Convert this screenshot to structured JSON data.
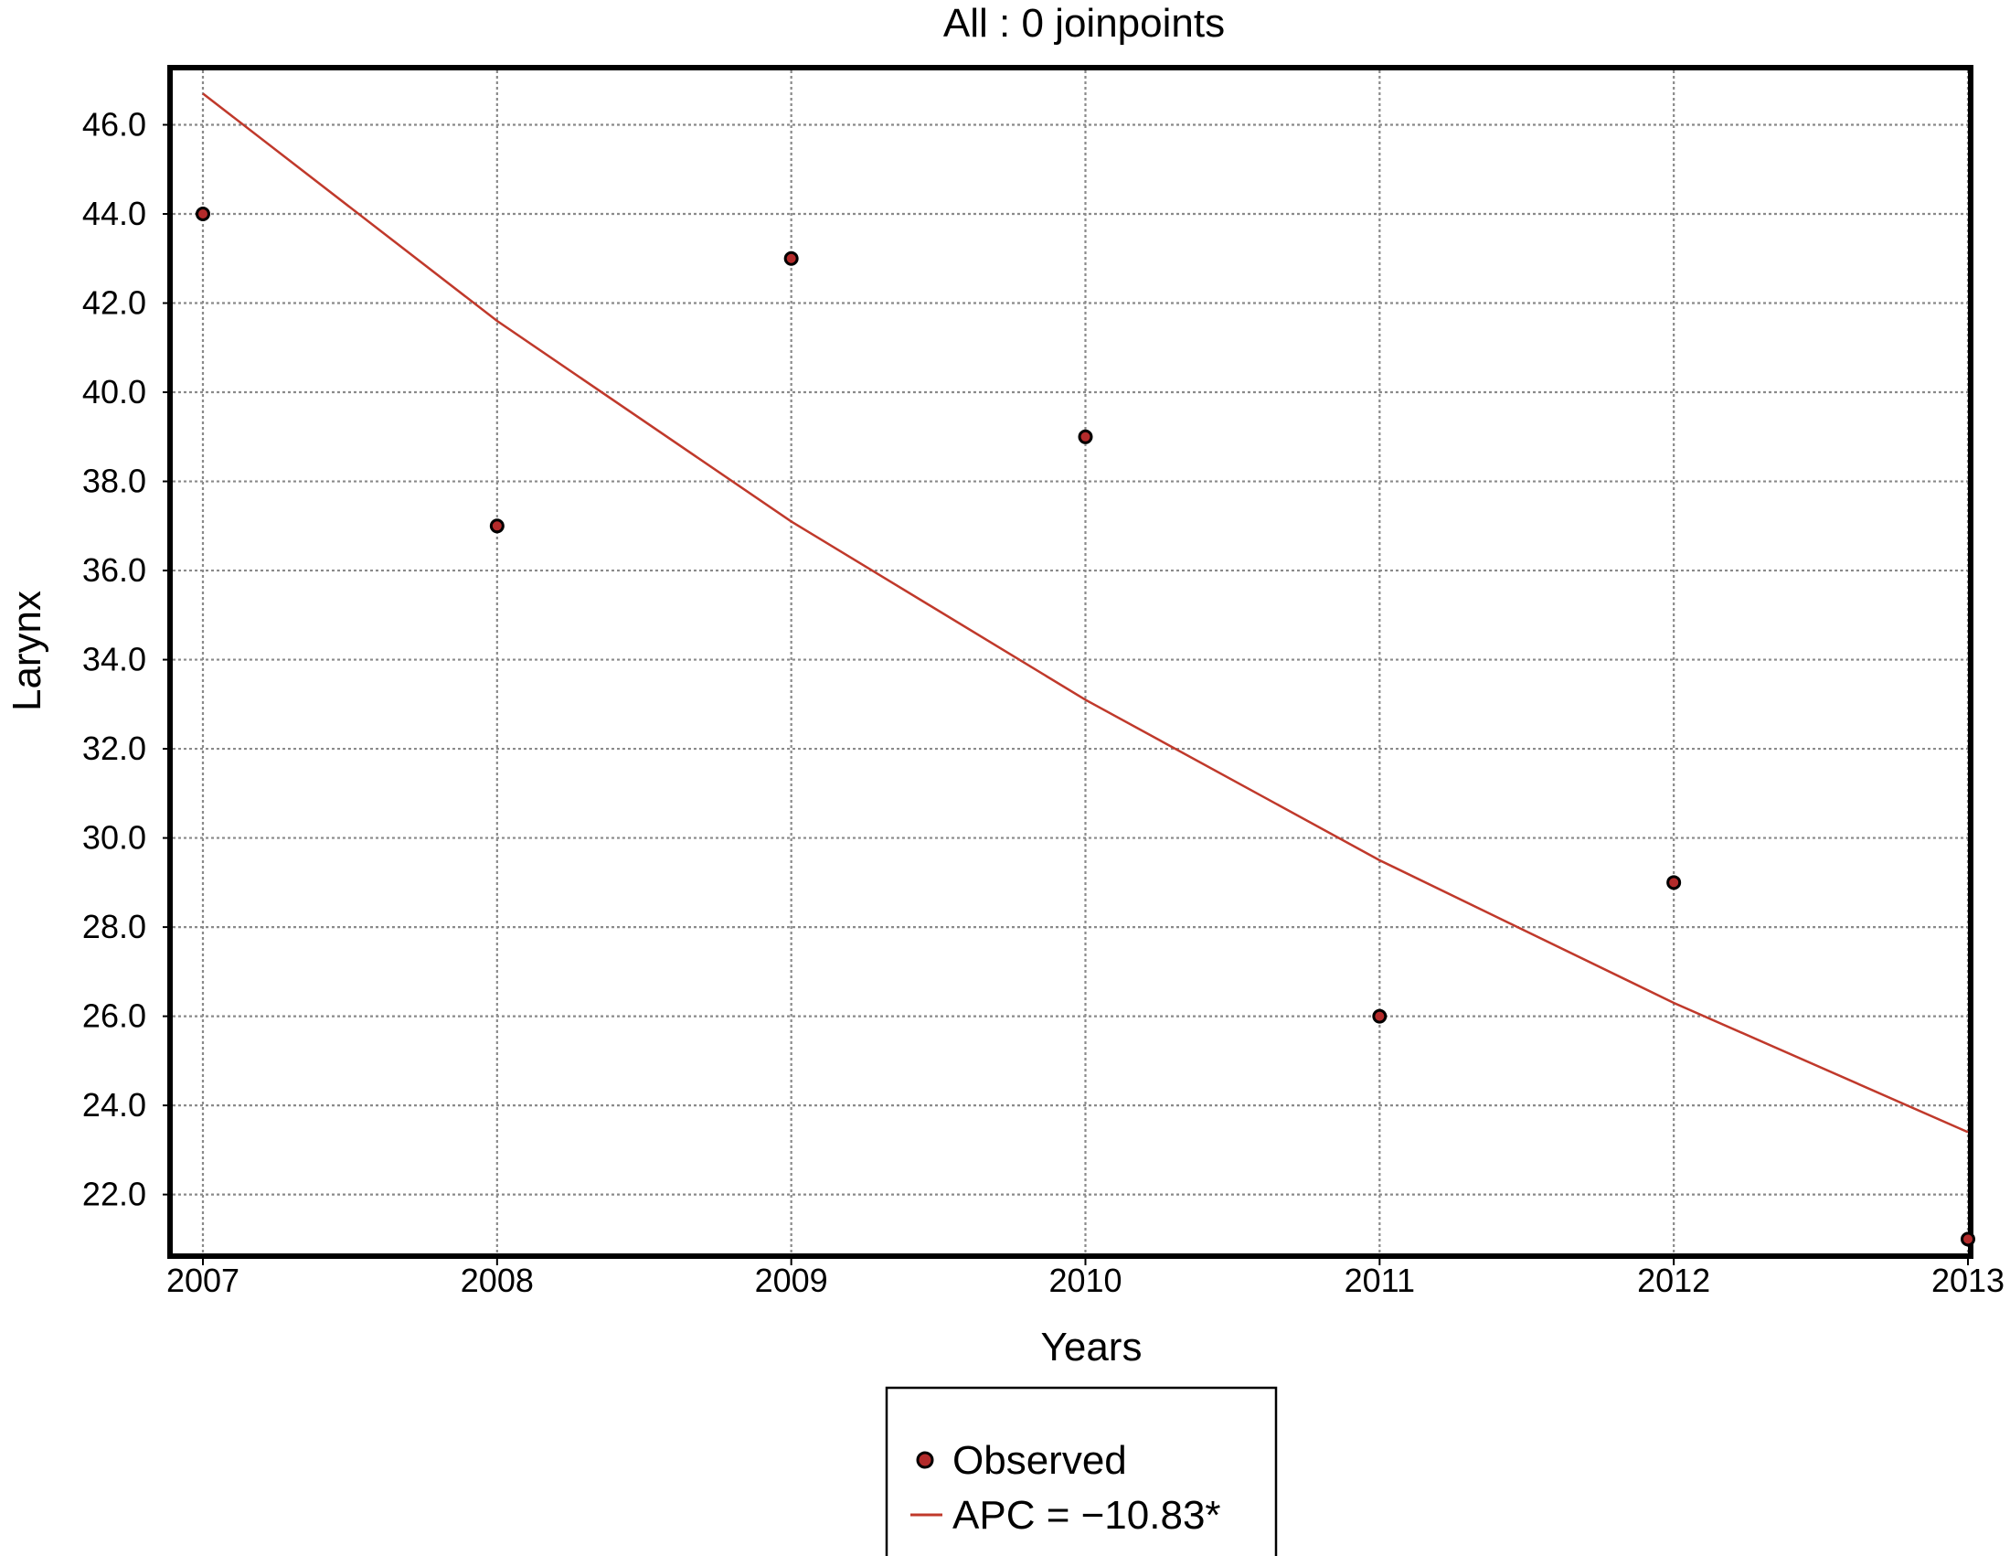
{
  "chart_data": {
    "type": "scatter",
    "title": "All : 0 joinpoints",
    "xlabel": "Years",
    "ylabel": "Larynx",
    "x_ticks": [
      "2007",
      "2008",
      "2009",
      "2010",
      "2011",
      "2012",
      "2013"
    ],
    "y_ticks": [
      "22.0",
      "24.0",
      "26.0",
      "28.0",
      "30.0",
      "32.0",
      "34.0",
      "36.0",
      "38.0",
      "40.0",
      "42.0",
      "44.0",
      "46.0"
    ],
    "xlim": [
      2007,
      2013
    ],
    "ylim": [
      20.7,
      47.2
    ],
    "grid": true,
    "legend_position": "bottom-center",
    "series": [
      {
        "name": "Observed",
        "kind": "points",
        "color": "#b32b2b",
        "x": [
          2007,
          2008,
          2009,
          2010,
          2011,
          2012,
          2013
        ],
        "y": [
          44.0,
          37.0,
          43.0,
          39.0,
          26.0,
          29.0,
          21.0
        ]
      },
      {
        "name": "APC = −10.83*",
        "kind": "line",
        "color": "#c0392b",
        "x": [
          2007,
          2008,
          2009,
          2010,
          2011,
          2012,
          2013
        ],
        "y": [
          46.7,
          41.6,
          37.1,
          33.1,
          29.5,
          26.3,
          23.4
        ]
      }
    ]
  }
}
